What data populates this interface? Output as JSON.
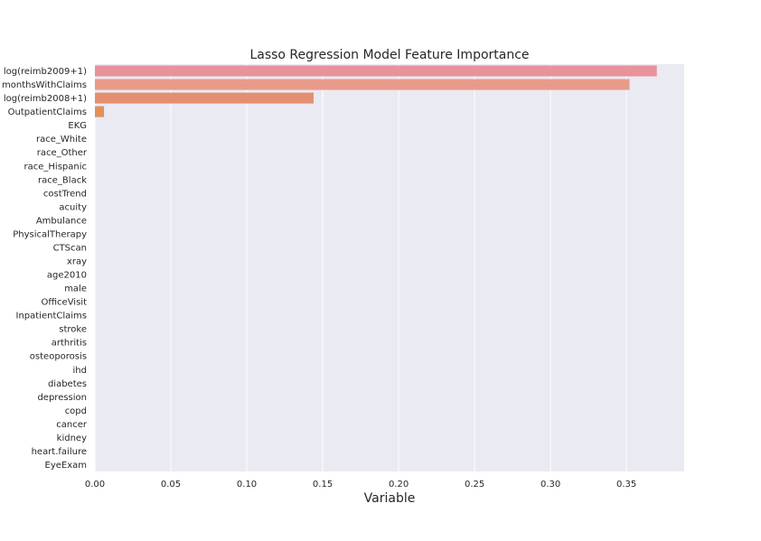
{
  "chart_data": {
    "type": "bar",
    "orientation": "horizontal",
    "title": "Lasso Regression Model Feature Importance",
    "xlabel": "Variable",
    "ylabel": "",
    "xlim": [
      0,
      0.388
    ],
    "xticks": [
      "0.00",
      "0.05",
      "0.10",
      "0.15",
      "0.20",
      "0.25",
      "0.30",
      "0.35"
    ],
    "grid": true,
    "categories": [
      "log(reimb2009+1)",
      "monthsWithClaims",
      "log(reimb2008+1)",
      "OutpatientClaims",
      "EKG",
      "race_White",
      "race_Other",
      "race_Hispanic",
      "race_Black",
      "costTrend",
      "acuity",
      "Ambulance",
      "PhysicalTherapy",
      "CTScan",
      "xray",
      "age2010",
      "male",
      "OfficeVisit",
      "InpatientClaims",
      "stroke",
      "arthritis",
      "osteoporosis",
      "ihd",
      "diabetes",
      "depression",
      "copd",
      "cancer",
      "kidney",
      "heart.failure",
      "EyeExam"
    ],
    "values": [
      0.37,
      0.352,
      0.144,
      0.006,
      0,
      0,
      0,
      0,
      0,
      0,
      0,
      0,
      0,
      0,
      0,
      0,
      0,
      0,
      0,
      0,
      0,
      0,
      0,
      0,
      0,
      0,
      0,
      0,
      0,
      0
    ],
    "colors": [
      "#e8929b",
      "#e89a8a",
      "#e49070",
      "#e09159"
    ],
    "plot_background": "#eaeaf2",
    "grid_color": "#ffffff"
  }
}
